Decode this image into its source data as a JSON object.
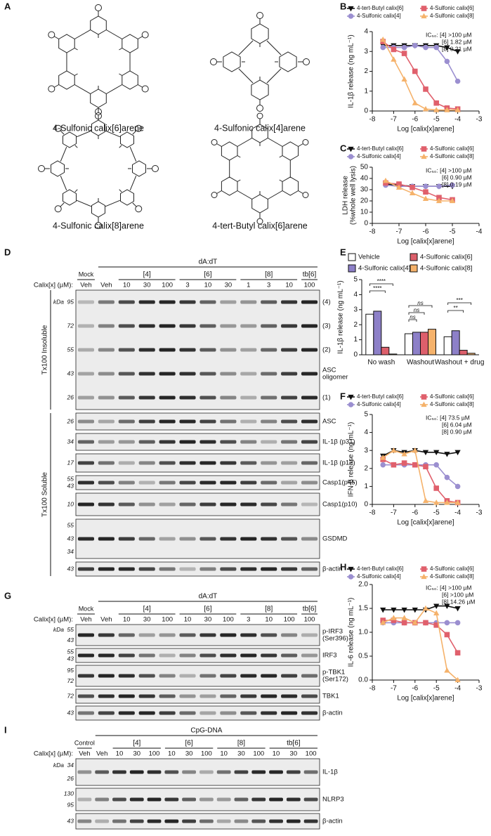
{
  "panel_labels": [
    "A",
    "B",
    "C",
    "D",
    "E",
    "F",
    "G",
    "H",
    "I"
  ],
  "structures": [
    "4-Sulfonic calix[6]arene",
    "4-Sulfonic calix[4]arene",
    "4-Sulfonic calix[8]arene",
    "4-tert-Butyl calix[6]arene"
  ],
  "chart_data": [
    {
      "type": "line",
      "ylabel": "IL-1β release (ng mL⁻¹)",
      "xlabel": "Log [calix[x]arene]",
      "x": [
        -7.5,
        -7,
        -6.5,
        -6,
        -5.5,
        -5,
        -4.5,
        -4
      ],
      "xlim": [
        -8,
        -3
      ],
      "xticks": [
        -8,
        -7,
        -6,
        -5,
        -4,
        -3
      ],
      "ylim": [
        0,
        4
      ],
      "yticks": [
        0,
        1,
        2,
        3,
        4
      ],
      "series": [
        {
          "name": "4-tert-Butyl calix[6]",
          "color": "#111111",
          "marker": "triangle-down",
          "values": [
            3.3,
            3.3,
            3.3,
            3.3,
            3.3,
            3.3,
            3.2,
            3.0
          ]
        },
        {
          "name": "4-Sulfonic calix[4]",
          "color": "#9b8fd0",
          "marker": "circle",
          "values": [
            3.2,
            3.2,
            3.2,
            3.3,
            3.2,
            3.2,
            2.5,
            1.5
          ]
        },
        {
          "name": "4-Sulfonic calix[6]",
          "color": "#e0606c",
          "marker": "square",
          "values": [
            3.5,
            3.1,
            2.9,
            2.0,
            1.1,
            0.4,
            0.15,
            0.1
          ]
        },
        {
          "name": "4-Sulfonic calix[8]",
          "color": "#f5b26b",
          "marker": "triangle-up",
          "values": [
            3.6,
            2.6,
            1.6,
            0.4,
            0.1,
            0.05,
            0.05,
            0.05
          ]
        }
      ],
      "annotations": [
        "IC₅₀: [4] >100 µM",
        "[6] 1.82 µM",
        "[8] 0.21 µM"
      ]
    },
    {
      "type": "line",
      "ylabel": [
        "LDH release",
        "(%whole well lysis)"
      ],
      "xlabel": "Log [calix[x]arene]",
      "x": [
        -7.5,
        -7,
        -6.5,
        -6,
        -5.5,
        -5
      ],
      "xlim": [
        -8,
        -4
      ],
      "xticks": [
        -8,
        -7,
        -6,
        -5,
        -4
      ],
      "ylim": [
        0,
        50
      ],
      "yticks": [
        0,
        10,
        20,
        30,
        40,
        50
      ],
      "series": [
        {
          "name": "4-tert-Butyl calix[6]",
          "color": "#111111",
          "marker": "triangle-down",
          "values": [
            35,
            34,
            33,
            33,
            33,
            33
          ]
        },
        {
          "name": "4-Sulfonic calix[4]",
          "color": "#9b8fd0",
          "marker": "circle",
          "values": [
            34,
            33,
            33,
            33,
            33,
            34
          ]
        },
        {
          "name": "4-Sulfonic calix[6]",
          "color": "#e0606c",
          "marker": "square",
          "values": [
            36,
            35,
            32,
            28,
            23,
            21
          ]
        },
        {
          "name": "4-Sulfonic calix[8]",
          "color": "#f5b26b",
          "marker": "triangle-up",
          "values": [
            38,
            32,
            27,
            22,
            20,
            20
          ]
        }
      ],
      "annotations": [
        "IC₅₀: [4] >100 µM",
        "[6] 0.90 µM",
        "[8] 0.19 µM"
      ]
    },
    {
      "type": "bar",
      "ylabel": "IL-1β release (ng mL⁻¹)",
      "categories": [
        "No wash",
        "Washout",
        "Washout + drug"
      ],
      "ylim": [
        0,
        5
      ],
      "yticks": [
        0,
        1,
        2,
        3,
        4,
        5
      ],
      "series": [
        {
          "name": "Vehicle",
          "color": "#ffffff",
          "values": [
            2.7,
            1.4,
            1.2
          ]
        },
        {
          "name": "4-Sulfonic calix[4]",
          "color": "#8d80c8",
          "values": [
            2.9,
            1.5,
            1.6
          ]
        },
        {
          "name": "4-Sulfonic calix[6]",
          "color": "#dd5f6b",
          "values": [
            0.5,
            1.5,
            0.3
          ]
        },
        {
          "name": "4-Sulfonic calix[8]",
          "color": "#f5b26b",
          "values": [
            0.05,
            1.7,
            0.1
          ]
        }
      ],
      "annotations": [
        "****",
        "****",
        "ns",
        "ns",
        "ns",
        "***",
        "**"
      ]
    },
    {
      "type": "line",
      "ylabel": "IFN-β release (ng mL⁻¹)",
      "xlabel": "Log [calix[x]arene]",
      "x": [
        -7.5,
        -7,
        -6.5,
        -6,
        -5.5,
        -5,
        -4.5,
        -4
      ],
      "xlim": [
        -8,
        -3
      ],
      "xticks": [
        -8,
        -7,
        -6,
        -5,
        -4,
        -3
      ],
      "ylim": [
        0,
        5
      ],
      "yticks": [
        0,
        1,
        2,
        3,
        4,
        5
      ],
      "series": [
        {
          "name": "4-tert-Butyl calix[6]",
          "color": "#111111",
          "marker": "triangle-down",
          "values": [
            2.7,
            3.0,
            2.9,
            3.0,
            2.9,
            2.9,
            2.8,
            2.9
          ]
        },
        {
          "name": "4-Sulfonic calix[4]",
          "color": "#9b8fd0",
          "marker": "circle",
          "values": [
            2.2,
            2.2,
            2.2,
            2.2,
            2.2,
            2.2,
            1.5,
            1.0
          ]
        },
        {
          "name": "4-Sulfonic calix[6]",
          "color": "#e0606c",
          "marker": "square",
          "values": [
            2.5,
            2.2,
            2.3,
            2.2,
            2.1,
            0.9,
            0.2,
            0.1
          ]
        },
        {
          "name": "4-Sulfonic calix[8]",
          "color": "#f5b26b",
          "marker": "triangle-up",
          "values": [
            2.6,
            3.0,
            2.8,
            3.0,
            0.2,
            0.1,
            0.1,
            0.1
          ]
        }
      ],
      "annotations": [
        "IC₅₀: [4] 73.5 µM",
        "[6] 6.04 µM",
        "[8] 0.90 µM"
      ]
    },
    {
      "type": "line",
      "ylabel": "IL-6 release (ng mL⁻¹)",
      "xlabel": "Log [calix[x]arene]",
      "x": [
        -7.5,
        -7,
        -6.5,
        -6,
        -5.5,
        -5,
        -4.5,
        -4
      ],
      "xlim": [
        -8,
        -3
      ],
      "xticks": [
        -8,
        -7,
        -6,
        -5,
        -4,
        -3
      ],
      "ylim": [
        0,
        2
      ],
      "yticks": [
        {
          "value": 0,
          "label": "0.0"
        },
        0.5,
        {
          "value": 1,
          "label": "1.0"
        },
        1.5,
        {
          "value": 2,
          "label": "2.0"
        }
      ],
      "series": [
        {
          "name": "4-tert-Butyl calix[6]",
          "color": "#111111",
          "marker": "triangle-down",
          "values": [
            1.47,
            1.47,
            1.47,
            1.47,
            1.47,
            1.55,
            1.55,
            1.5
          ]
        },
        {
          "name": "4-Sulfonic calix[4]",
          "color": "#9b8fd0",
          "marker": "circle",
          "values": [
            1.2,
            1.2,
            1.2,
            1.2,
            1.2,
            1.2,
            1.2,
            1.2
          ]
        },
        {
          "name": "4-Sulfonic calix[6]",
          "color": "#e0606c",
          "marker": "square",
          "values": [
            1.25,
            1.25,
            1.2,
            1.2,
            1.2,
            1.15,
            0.95,
            0.57
          ]
        },
        {
          "name": "4-Sulfonic calix[8]",
          "color": "#f5b26b",
          "marker": "triangle-up",
          "values": [
            1.2,
            1.3,
            1.3,
            1.2,
            1.5,
            1.4,
            0.2,
            0.0
          ]
        }
      ],
      "annotations": [
        "IC₅₀: [4] >100 µM",
        "[6] >100 µM",
        "[8] 14.26 µM"
      ]
    }
  ],
  "blots": [
    {
      "kda": "kDa",
      "calix_label": "Calix[x] (µM):",
      "treatment": "dA:dT",
      "control": "Mock",
      "groups": [
        "[4]",
        "[6]",
        "[8]",
        "tb[6]"
      ],
      "lanes": [
        "Veh",
        "Veh",
        "10",
        "30",
        "100",
        "3",
        "10",
        "30",
        "1",
        "3",
        "10",
        "100"
      ],
      "fractions": [
        "Tx100 Insoluble",
        "Tx100 Soluble"
      ],
      "rows": [
        {
          "markers": [
            95,
            72,
            55,
            43,
            26
          ],
          "labels": [
            "(4)",
            "(3)",
            "(2)",
            [
              "ASC",
              "oligomer"
            ],
            "(1)"
          ]
        },
        {
          "markers": [
            26
          ],
          "labels": [
            "ASC"
          ]
        },
        {
          "markers": [
            34
          ],
          "labels": [
            "IL-1β (p31)"
          ]
        },
        {
          "markers": [
            17
          ],
          "labels": [
            "IL-1β (p17)"
          ]
        },
        {
          "markers": [
            55,
            43
          ],
          "labels": [
            "Casp1(p45)"
          ]
        },
        {
          "markers": [
            10
          ],
          "labels": [
            "Casp1(p10)"
          ]
        },
        {
          "markers": [
            55,
            43,
            34
          ],
          "labels": [
            "GSDMD"
          ]
        },
        {
          "markers": [
            43
          ],
          "labels": [
            "β-actin"
          ]
        }
      ]
    },
    {
      "kda": "kDa",
      "calix_label": "Calix[x] (µM):",
      "treatment": "dA:dT",
      "control": "Mock",
      "groups": [
        "[4]",
        "[6]",
        "[8]",
        "tb[6]"
      ],
      "lanes": [
        "Veh",
        "Veh",
        "10",
        "30",
        "100",
        "10",
        "30",
        "100",
        "3",
        "10",
        "100",
        "100"
      ],
      "rows": [
        {
          "markers": [
            55,
            43
          ],
          "labels": [
            [
              "p-IRF3",
              "(Ser396)"
            ]
          ]
        },
        {
          "markers": [
            55,
            43
          ],
          "labels": [
            "IRF3"
          ]
        },
        {
          "markers": [
            95,
            72
          ],
          "labels": [
            [
              "p-TBK1",
              "(Ser172)"
            ]
          ]
        },
        {
          "markers": [
            72
          ],
          "labels": [
            "TBK1"
          ]
        },
        {
          "markers": [
            43
          ],
          "labels": [
            "β-actin"
          ]
        }
      ]
    },
    {
      "kda": "kDa",
      "calix_label": "Calix[x] (µM):",
      "treatment": "CpG-DNA",
      "control": "Control",
      "groups": [
        "[4]",
        "[6]",
        "[8]",
        "tb[6]"
      ],
      "lanes": [
        "Veh",
        "Veh",
        "10",
        "30",
        "100",
        "10",
        "30",
        "100",
        "10",
        "30",
        "100",
        "10",
        "30",
        "100"
      ],
      "rows": [
        {
          "markers": [
            34,
            26
          ],
          "labels": [
            "IL-1β"
          ]
        },
        {
          "markers": [
            130,
            95
          ],
          "labels": [
            "NLRP3"
          ]
        },
        {
          "markers": [
            43
          ],
          "labels": [
            "β-actin"
          ]
        }
      ]
    }
  ]
}
